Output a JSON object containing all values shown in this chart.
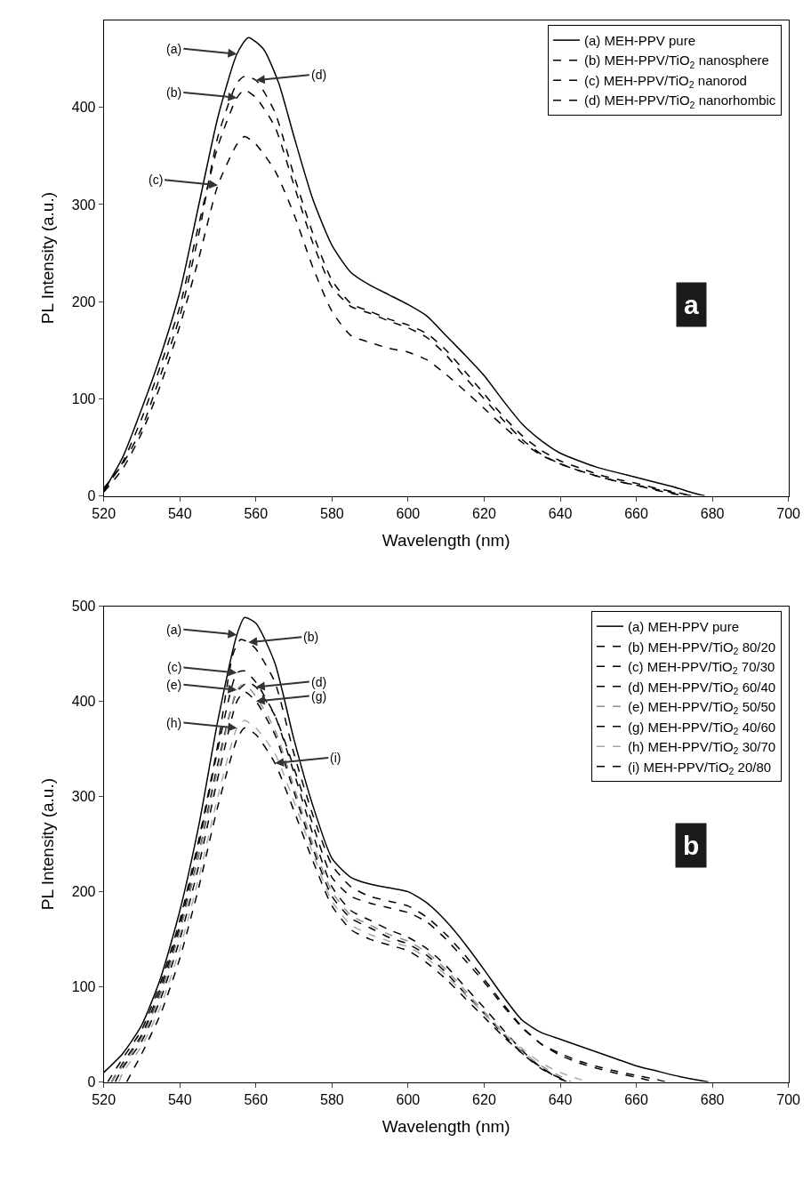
{
  "chart_data": [
    {
      "type": "line",
      "xlabel": "Wavelength (nm)",
      "ylabel": "PL Intensity (a.u.)",
      "xlim": [
        520,
        700
      ],
      "xticks": [
        520,
        540,
        560,
        580,
        600,
        620,
        640,
        660,
        680,
        700
      ],
      "ylim": [
        0,
        490
      ],
      "yticks": [
        0,
        100,
        200,
        300,
        400
      ],
      "legend": "top right",
      "marker": "none",
      "annotations": [
        {
          "text": "(a)",
          "x": 555,
          "y": 455
        },
        {
          "text": "(b)",
          "x": 555,
          "y": 410
        },
        {
          "text": "(c)",
          "x": 550,
          "y": 320
        },
        {
          "text": "(d)",
          "x": 560,
          "y": 428
        },
        "a"
      ],
      "series": [
        {
          "name": "(a) MEH-PPV pure",
          "color": "#000000",
          "line_style": "solid",
          "x": [
            520,
            525,
            530,
            535,
            540,
            545,
            550,
            555,
            558,
            562,
            566,
            570,
            575,
            580,
            585,
            590,
            595,
            600,
            605,
            610,
            615,
            620,
            625,
            630,
            635,
            640,
            645,
            650,
            655,
            660,
            665,
            670,
            675,
            678
          ],
          "values": [
            5,
            40,
            90,
            145,
            210,
            300,
            390,
            455,
            472,
            460,
            425,
            370,
            305,
            258,
            230,
            217,
            207,
            197,
            185,
            165,
            145,
            124,
            98,
            74,
            57,
            44,
            36,
            29,
            24,
            19,
            14,
            9,
            3,
            0
          ]
        },
        {
          "name": "(b) MEH-PPV/TiO$_{2}$ nanosphere",
          "color": "#000000",
          "line_style": "dashed",
          "x": [
            520,
            525,
            530,
            535,
            540,
            545,
            550,
            555,
            557,
            560,
            565,
            570,
            575,
            580,
            585,
            590,
            595,
            600,
            605,
            610,
            615,
            620,
            625,
            630,
            635,
            640,
            645,
            650,
            655,
            660,
            665,
            670,
            673
          ],
          "values": [
            5,
            35,
            80,
            135,
            195,
            280,
            360,
            410,
            418,
            410,
            380,
            320,
            260,
            215,
            195,
            188,
            180,
            173,
            163,
            145,
            122,
            100,
            78,
            58,
            43,
            33,
            26,
            20,
            15,
            11,
            6,
            2,
            0
          ]
        },
        {
          "name": "(c) MEH-PPV/TiO$_{2}$ nanorod",
          "color": "#000000",
          "line_style": "dashed",
          "x": [
            520,
            525,
            530,
            535,
            540,
            545,
            550,
            555,
            557,
            560,
            565,
            570,
            575,
            580,
            585,
            590,
            595,
            600,
            605,
            610,
            615,
            620,
            625,
            630,
            635,
            640,
            645,
            650,
            655,
            660,
            665,
            670,
            675
          ],
          "values": [
            4,
            28,
            65,
            115,
            175,
            245,
            320,
            362,
            370,
            362,
            335,
            290,
            235,
            190,
            165,
            158,
            152,
            148,
            140,
            125,
            108,
            90,
            72,
            55,
            42,
            33,
            26,
            20,
            15,
            11,
            7,
            3,
            0
          ]
        },
        {
          "name": "(d) MEH-PPV/TiO$_{2}$ nanorhombic",
          "color": "#000000",
          "line_style": "dashed",
          "x": [
            520,
            525,
            530,
            535,
            540,
            545,
            550,
            555,
            557,
            560,
            565,
            570,
            575,
            580,
            585,
            590,
            595,
            600,
            605,
            610,
            615,
            620,
            625,
            630,
            635,
            640,
            645,
            650,
            655,
            660,
            665,
            670,
            675
          ],
          "values": [
            8,
            33,
            70,
            125,
            185,
            270,
            370,
            425,
            432,
            428,
            395,
            330,
            270,
            222,
            198,
            190,
            182,
            176,
            167,
            150,
            128,
            105,
            82,
            62,
            47,
            36,
            29,
            22,
            17,
            13,
            8,
            4,
            0
          ]
        }
      ]
    },
    {
      "type": "line",
      "xlabel": "Wavelength (nm)",
      "ylabel": "PL Intensity (a.u.)",
      "xlim": [
        520,
        700
      ],
      "xticks": [
        520,
        540,
        560,
        580,
        600,
        620,
        640,
        660,
        680,
        700
      ],
      "ylim": [
        0,
        500
      ],
      "yticks": [
        0,
        100,
        200,
        300,
        400,
        500
      ],
      "legend": "top right",
      "marker": "none",
      "annotations": [
        {
          "text": "(a)",
          "x": 555,
          "y": 470
        },
        {
          "text": "(b)",
          "x": 558,
          "y": 462
        },
        {
          "text": "(c)",
          "x": 555,
          "y": 430
        },
        {
          "text": "(d)",
          "x": 560,
          "y": 415
        },
        {
          "text": "(e)",
          "x": 555,
          "y": 412
        },
        {
          "text": "(g)",
          "x": 560,
          "y": 400
        },
        {
          "text": "(h)",
          "x": 555,
          "y": 372
        },
        {
          "text": "(i)",
          "x": 565,
          "y": 335
        },
        "b"
      ],
      "series": [
        {
          "name": "(a) MEH-PPV pure",
          "color": "#000000",
          "line_style": "solid",
          "x": [
            520,
            525,
            530,
            535,
            540,
            545,
            550,
            555,
            557,
            560,
            565,
            570,
            575,
            580,
            585,
            590,
            595,
            600,
            605,
            610,
            615,
            620,
            625,
            630,
            635,
            640,
            645,
            650,
            655,
            660,
            665,
            670,
            675,
            679
          ],
          "values": [
            10,
            30,
            60,
            110,
            180,
            270,
            380,
            470,
            488,
            482,
            440,
            360,
            290,
            235,
            215,
            208,
            204,
            200,
            188,
            169,
            145,
            118,
            90,
            65,
            52,
            45,
            38,
            31,
            24,
            17,
            12,
            7,
            3,
            0
          ]
        },
        {
          "name": "(b) MEH-PPV/TiO$_{2}$ 80/20",
          "color": "#000000",
          "line_style": "dashed",
          "x": [
            521,
            525,
            530,
            535,
            540,
            545,
            550,
            554,
            556,
            558,
            560,
            565,
            570,
            575,
            580,
            585,
            590,
            595,
            600,
            605,
            610,
            615,
            620,
            625,
            630,
            635,
            640,
            645,
            650,
            655,
            660,
            665
          ],
          "values": [
            0,
            25,
            55,
            105,
            170,
            255,
            355,
            450,
            465,
            462,
            455,
            420,
            345,
            280,
            228,
            205,
            195,
            190,
            185,
            173,
            155,
            133,
            108,
            82,
            58,
            40,
            28,
            20,
            14,
            9,
            5,
            0
          ]
        },
        {
          "name": "(c) MEH-PPV/TiO$_{2}$ 70/30",
          "color": "#000000",
          "line_style": "dashed",
          "x": [
            522,
            525,
            530,
            535,
            540,
            545,
            550,
            555,
            557,
            560,
            565,
            570,
            575,
            580,
            585,
            590,
            595,
            600,
            605,
            610,
            615,
            620,
            625,
            630,
            635,
            640,
            642
          ],
          "values": [
            0,
            20,
            50,
            100,
            165,
            250,
            350,
            430,
            432,
            420,
            385,
            325,
            260,
            205,
            180,
            170,
            160,
            152,
            140,
            122,
            100,
            78,
            55,
            33,
            15,
            3,
            0
          ]
        },
        {
          "name": "(d) MEH-PPV/TiO$_{2}$ 60/40",
          "color": "#000000",
          "line_style": "dashed",
          "x": [
            522,
            525,
            530,
            535,
            540,
            545,
            550,
            555,
            558,
            560,
            565,
            570,
            575,
            580,
            585,
            590,
            595,
            600,
            605,
            610,
            615,
            620,
            625,
            630,
            635,
            640,
            645,
            650,
            655,
            660,
            665,
            668
          ],
          "values": [
            0,
            18,
            48,
            95,
            160,
            240,
            335,
            410,
            420,
            415,
            385,
            330,
            270,
            215,
            195,
            188,
            183,
            178,
            168,
            150,
            128,
            105,
            80,
            57,
            40,
            30,
            22,
            16,
            11,
            7,
            3,
            0
          ]
        },
        {
          "name": "(e) MEH-PPV/TiO$_{2}$ 50/50",
          "color": "#909090",
          "line_style": "dashed",
          "x": [
            522,
            525,
            530,
            535,
            540,
            545,
            550,
            555,
            557,
            560,
            565,
            570,
            575,
            580,
            585,
            590,
            595,
            600,
            605,
            610,
            615,
            620,
            625,
            630,
            635,
            640,
            643
          ],
          "values": [
            0,
            18,
            47,
            93,
            158,
            238,
            330,
            412,
            418,
            405,
            370,
            310,
            250,
            200,
            175,
            165,
            155,
            148,
            136,
            118,
            96,
            74,
            52,
            32,
            17,
            6,
            0
          ]
        },
        {
          "name": "(g) MEH-PPV/TiO$_{2}$ 40/60",
          "color": "#000000",
          "line_style": "dashed",
          "x": [
            523,
            525,
            530,
            535,
            540,
            545,
            550,
            555,
            557,
            560,
            565,
            570,
            575,
            580,
            585,
            590,
            595,
            600,
            605,
            610,
            615,
            620,
            625,
            630,
            635,
            640,
            642
          ],
          "values": [
            0,
            15,
            43,
            88,
            150,
            228,
            320,
            400,
            410,
            400,
            365,
            305,
            245,
            195,
            172,
            162,
            152,
            145,
            133,
            115,
            93,
            72,
            50,
            30,
            14,
            4,
            0
          ]
        },
        {
          "name": "(h) MEH-PPV/TiO$_{2}$ 30/70",
          "color": "#a8a8a8",
          "line_style": "dashed",
          "x": [
            524,
            525,
            530,
            535,
            540,
            545,
            550,
            555,
            557,
            560,
            565,
            570,
            575,
            580,
            585,
            590,
            595,
            600,
            605,
            610,
            615,
            620,
            625,
            630,
            635,
            640,
            645,
            648
          ],
          "values": [
            0,
            10,
            38,
            80,
            140,
            215,
            300,
            372,
            380,
            372,
            345,
            295,
            240,
            190,
            165,
            155,
            148,
            142,
            130,
            112,
            92,
            72,
            52,
            35,
            20,
            10,
            3,
            0
          ]
        },
        {
          "name": "(i) MEH-PPV/TiO$_{2}$ 20/80",
          "color": "#000000",
          "line_style": "dashed",
          "x": [
            526,
            530,
            535,
            540,
            545,
            550,
            555,
            557,
            560,
            565,
            570,
            575,
            580,
            585,
            590,
            595,
            600,
            605,
            610,
            615,
            620,
            625,
            630,
            635,
            640,
            642
          ],
          "values": [
            0,
            30,
            72,
            130,
            205,
            290,
            360,
            372,
            365,
            335,
            285,
            232,
            185,
            160,
            150,
            144,
            138,
            125,
            108,
            88,
            68,
            48,
            30,
            15,
            4,
            0
          ]
        }
      ]
    }
  ]
}
